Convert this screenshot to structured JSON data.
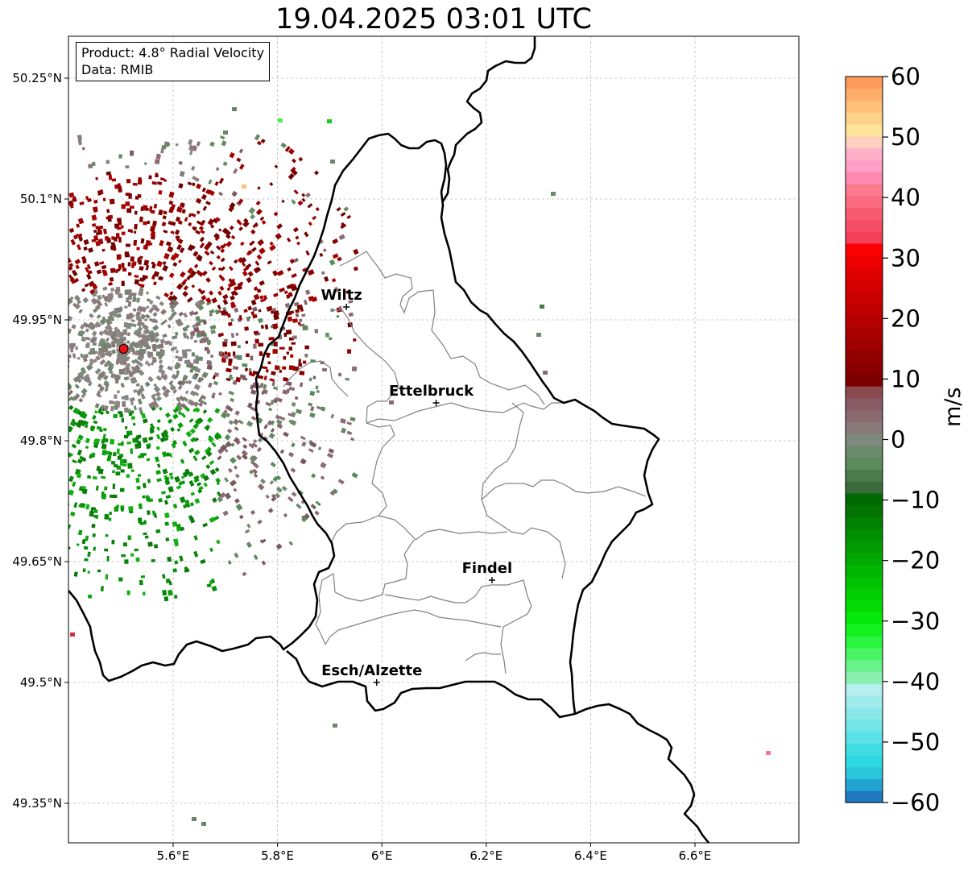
{
  "title": "19.04.2025 03:01 UTC",
  "info": {
    "product_line": "Product: 4.8° Radial Velocity",
    "data_line": "Data: RMIB"
  },
  "map": {
    "extent": {
      "lon": [
        5.4,
        6.8
      ],
      "lat": [
        49.3,
        50.3
      ]
    },
    "lat_ticks": [
      {
        "value": 50.25,
        "label": "50.25°N"
      },
      {
        "value": 50.1,
        "label": "50.1°N"
      },
      {
        "value": 49.95,
        "label": "49.95°N"
      },
      {
        "value": 49.8,
        "label": "49.8°N"
      },
      {
        "value": 49.65,
        "label": "49.65°N"
      },
      {
        "value": 49.5,
        "label": "49.5°N"
      },
      {
        "value": 49.35,
        "label": "49.35°N"
      }
    ],
    "lon_ticks": [
      {
        "value": 5.6,
        "label": "5.6°E"
      },
      {
        "value": 5.8,
        "label": "5.8°E"
      },
      {
        "value": 6.0,
        "label": "6°E"
      },
      {
        "value": 6.2,
        "label": "6.2°E"
      },
      {
        "value": 6.4,
        "label": "6.4°E"
      },
      {
        "value": 6.6,
        "label": "6.6°E"
      }
    ],
    "grid": true,
    "radar_site": {
      "lon": 5.505,
      "lat": 49.914
    },
    "cities": [
      {
        "name": "Wiltz",
        "lon": 5.932,
        "lat": 49.966
      },
      {
        "name": "Ettelbruck",
        "lon": 6.104,
        "lat": 49.847
      },
      {
        "name": "Findel",
        "lon": 6.211,
        "lat": 49.627
      },
      {
        "name": "Esch/Alzette",
        "lon": 5.99,
        "lat": 49.5
      }
    ]
  },
  "colorbar": {
    "label": "m/s",
    "min": -60,
    "max": 60,
    "ticks": [
      {
        "value": 60,
        "label": "60"
      },
      {
        "value": 50,
        "label": "50"
      },
      {
        "value": 40,
        "label": "40"
      },
      {
        "value": 30,
        "label": "30"
      },
      {
        "value": 20,
        "label": "20"
      },
      {
        "value": 10,
        "label": "10"
      },
      {
        "value": 0,
        "label": "0"
      },
      {
        "value": -10,
        "label": "−10"
      },
      {
        "value": -20,
        "label": "−20"
      },
      {
        "value": -30,
        "label": "−30"
      },
      {
        "value": -40,
        "label": "−40"
      },
      {
        "value": -50,
        "label": "−50"
      },
      {
        "value": -60,
        "label": "−60"
      }
    ],
    "colors": [
      "#1f78c0",
      "#22a4d0",
      "#2bc6d9",
      "#2ed8e0",
      "#40dde3",
      "#5be2e6",
      "#73e5e8",
      "#8ae8ea",
      "#a0ebec",
      "#b4eeed",
      "#8af0b0",
      "#6af28a",
      "#4af465",
      "#2bf540",
      "#14f020",
      "#04e80c",
      "#02dd06",
      "#02d004",
      "#02c303",
      "#02b602",
      "#02a902",
      "#029c02",
      "#028f02",
      "#028202",
      "#027502",
      "#026902",
      "#3b6b3b",
      "#4b7a4b",
      "#5b8a5b",
      "#6c8a6c",
      "#7d8a7d",
      "#8a7a7a",
      "#8a6a70",
      "#8a5a64",
      "#8a4a50",
      "#7d0000",
      "#880000",
      "#930000",
      "#9e0000",
      "#a90000",
      "#b40000",
      "#bf0000",
      "#ca0000",
      "#d50000",
      "#e00000",
      "#ee0000",
      "#fb0202",
      "#f2405a",
      "#f54d65",
      "#f75b70",
      "#fa6a80",
      "#fc7a8e",
      "#ff8ab0",
      "#ff9fc8",
      "#ffafc8",
      "#ffd0c0",
      "#ffe59c",
      "#ffd28a",
      "#ffc07a",
      "#ffad6a",
      "#ff9b5a"
    ]
  }
}
